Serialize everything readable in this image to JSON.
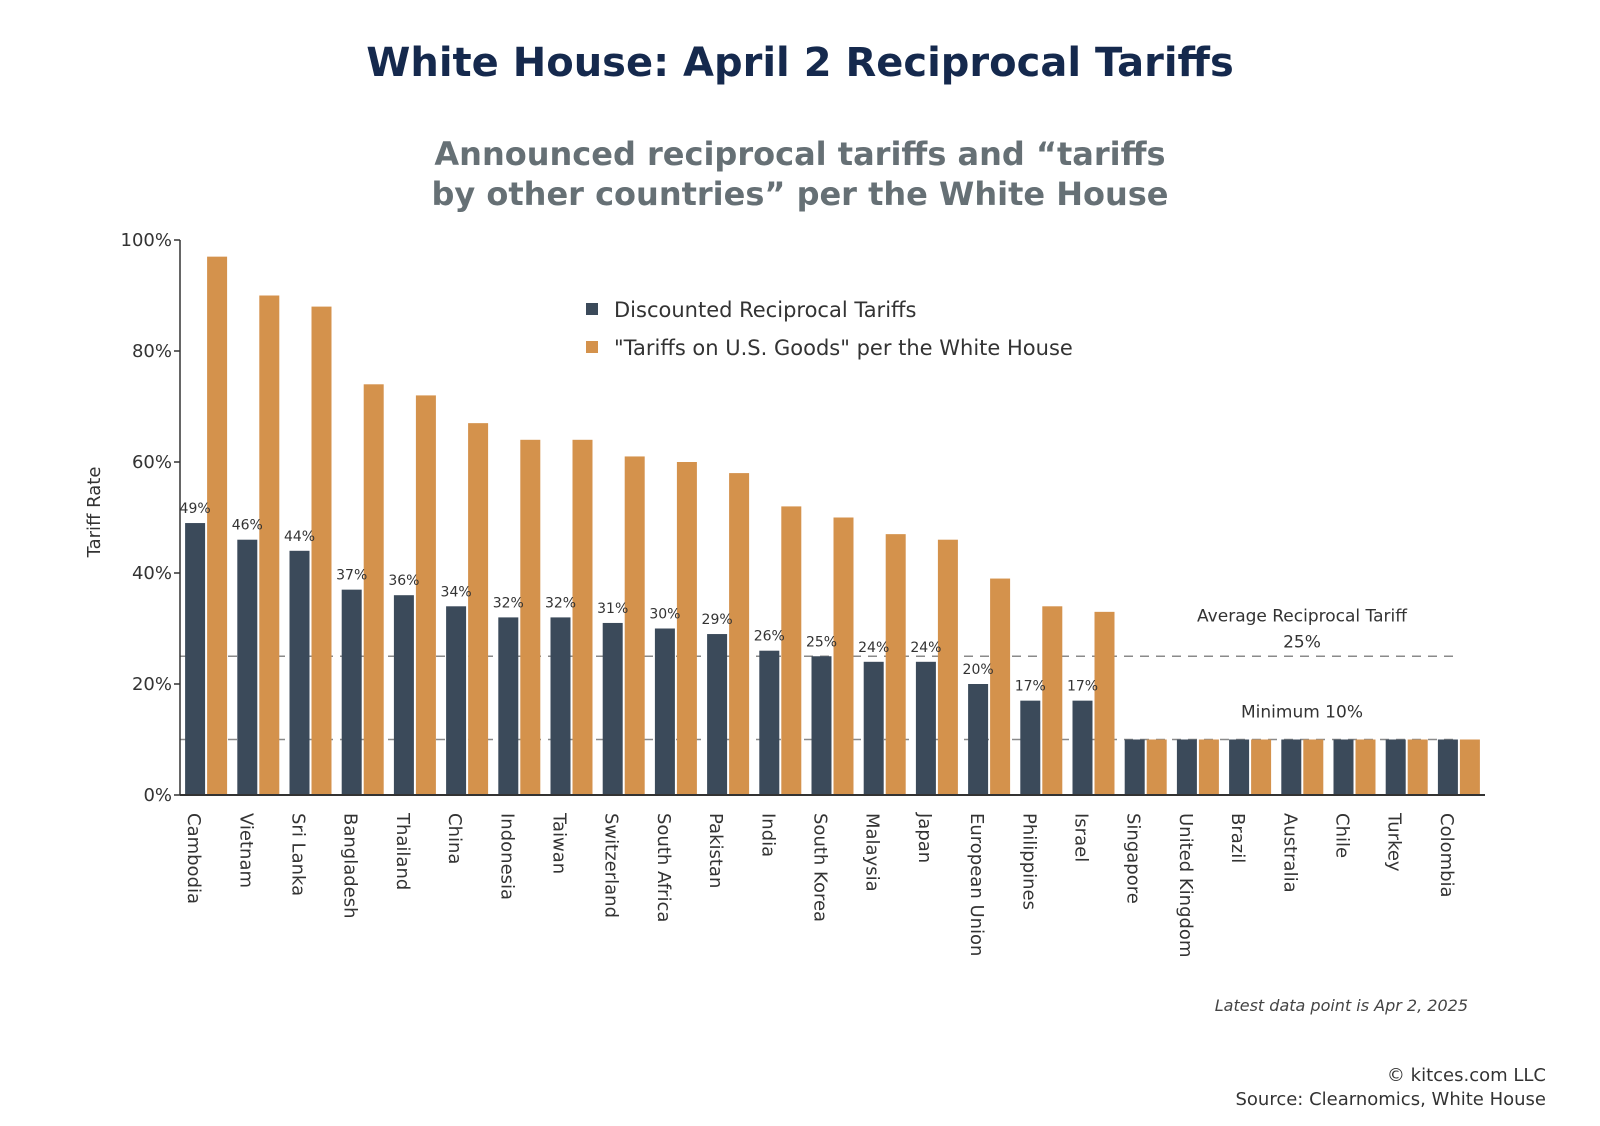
{
  "title": "White House: April 2 Reciprocal Tariffs",
  "subtitle_line1": "Announced reciprocal tariffs and “tariffs",
  "subtitle_line2": "by other countries” per the White House",
  "note": "Latest data point is Apr 2, 2025",
  "footer": {
    "copyright": "© kitces.com LLC",
    "source": "Source: Clearnomics, White House"
  },
  "colors": {
    "discounted": "#3b4a5a",
    "white_house": "#d4924c",
    "reference_line": "#8a8a8a"
  },
  "chart_data": {
    "type": "bar",
    "ylabel": "Tariff Rate",
    "xlabel": "",
    "ylim": [
      0,
      100
    ],
    "y_ticks": [
      "0%",
      "20%",
      "40%",
      "60%",
      "80%",
      "100%"
    ],
    "y_tick_values": [
      0,
      20,
      40,
      60,
      80,
      100
    ],
    "legend_placement": "top-center",
    "grid": false,
    "categories": [
      "Cambodia",
      "Vietnam",
      "Sri Lanka",
      "Bangladesh",
      "Thailand",
      "China",
      "Indonesia",
      "Taiwan",
      "Switzerland",
      "South Africa",
      "Pakistan",
      "India",
      "South Korea",
      "Malaysia",
      "Japan",
      "European Union",
      "Philippines",
      "Israel",
      "Singapore",
      "United Kingdom",
      "Brazil",
      "Australia",
      "Chile",
      "Turkey",
      "Colombia"
    ],
    "series": [
      {
        "name": "Discounted Reciprocal Tariffs",
        "values": [
          49,
          46,
          44,
          37,
          36,
          34,
          32,
          32,
          31,
          30,
          29,
          26,
          25,
          24,
          24,
          20,
          17,
          17,
          10,
          10,
          10,
          10,
          10,
          10,
          10
        ],
        "data_labels": [
          "49%",
          "46%",
          "44%",
          "37%",
          "36%",
          "34%",
          "32%",
          "32%",
          "31%",
          "30%",
          "29%",
          "26%",
          "25%",
          "24%",
          "24%",
          "20%",
          "17%",
          "17%"
        ]
      },
      {
        "name": "\"Tariffs on U.S. Goods\" per the White House",
        "values": [
          97,
          90,
          88,
          74,
          72,
          67,
          64,
          64,
          61,
          60,
          58,
          52,
          50,
          47,
          46,
          39,
          34,
          33,
          10,
          10,
          10,
          10,
          10,
          10,
          10
        ]
      }
    ],
    "reference_lines": [
      {
        "value": 25,
        "label": "Average Reciprocal Tariff",
        "value_label": "25%"
      },
      {
        "value": 10,
        "label": "Minimum 10%",
        "value_label": ""
      }
    ]
  }
}
